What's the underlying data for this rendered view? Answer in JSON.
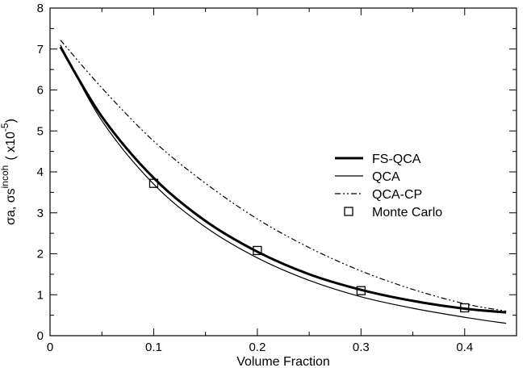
{
  "chart_data": {
    "type": "line",
    "xlabel": "Volume Fraction",
    "ylabel": {
      "base": "σa, σs",
      "superscript": "incoh",
      "multiplier_open": "( x10",
      "multiplier_exp": "-5",
      "multiplier_close": ")"
    },
    "xlim": [
      0,
      0.45
    ],
    "ylim": [
      0,
      8
    ],
    "xticks": [
      "0",
      "0.1",
      "0.2",
      "0.3",
      "0.4"
    ],
    "xtick_values": [
      0,
      0.1,
      0.2,
      0.3,
      0.4
    ],
    "yticks": [
      "0",
      "1",
      "2",
      "3",
      "4",
      "5",
      "6",
      "7",
      "8"
    ],
    "ytick_values": [
      0,
      1,
      2,
      3,
      4,
      5,
      6,
      7,
      8
    ],
    "grid": false,
    "legend_position": "right-center",
    "series": [
      {
        "name": "FS-QCA",
        "style": "thick-solid",
        "x": [
          0.01,
          0.05,
          0.1,
          0.15,
          0.2,
          0.25,
          0.3,
          0.35,
          0.4,
          0.44
        ],
        "y": [
          7.05,
          5.35,
          3.85,
          2.8,
          2.05,
          1.5,
          1.12,
          0.85,
          0.66,
          0.57
        ]
      },
      {
        "name": "QCA",
        "style": "thin-solid",
        "x": [
          0.01,
          0.05,
          0.1,
          0.15,
          0.2,
          0.25,
          0.3,
          0.35,
          0.4,
          0.44
        ],
        "y": [
          7.1,
          5.25,
          3.7,
          2.65,
          1.9,
          1.35,
          0.95,
          0.67,
          0.45,
          0.3
        ]
      },
      {
        "name": "QCA-CP",
        "style": "dash-dot",
        "x": [
          0.01,
          0.05,
          0.1,
          0.15,
          0.2,
          0.25,
          0.3,
          0.35,
          0.4,
          0.44
        ],
        "y": [
          7.22,
          6.05,
          4.75,
          3.72,
          2.85,
          2.15,
          1.58,
          1.13,
          0.78,
          0.6
        ]
      },
      {
        "name": "Monte Carlo",
        "style": "open-square",
        "x": [
          0.1,
          0.2,
          0.3,
          0.4
        ],
        "y": [
          3.72,
          2.08,
          1.1,
          0.68
        ]
      }
    ]
  }
}
